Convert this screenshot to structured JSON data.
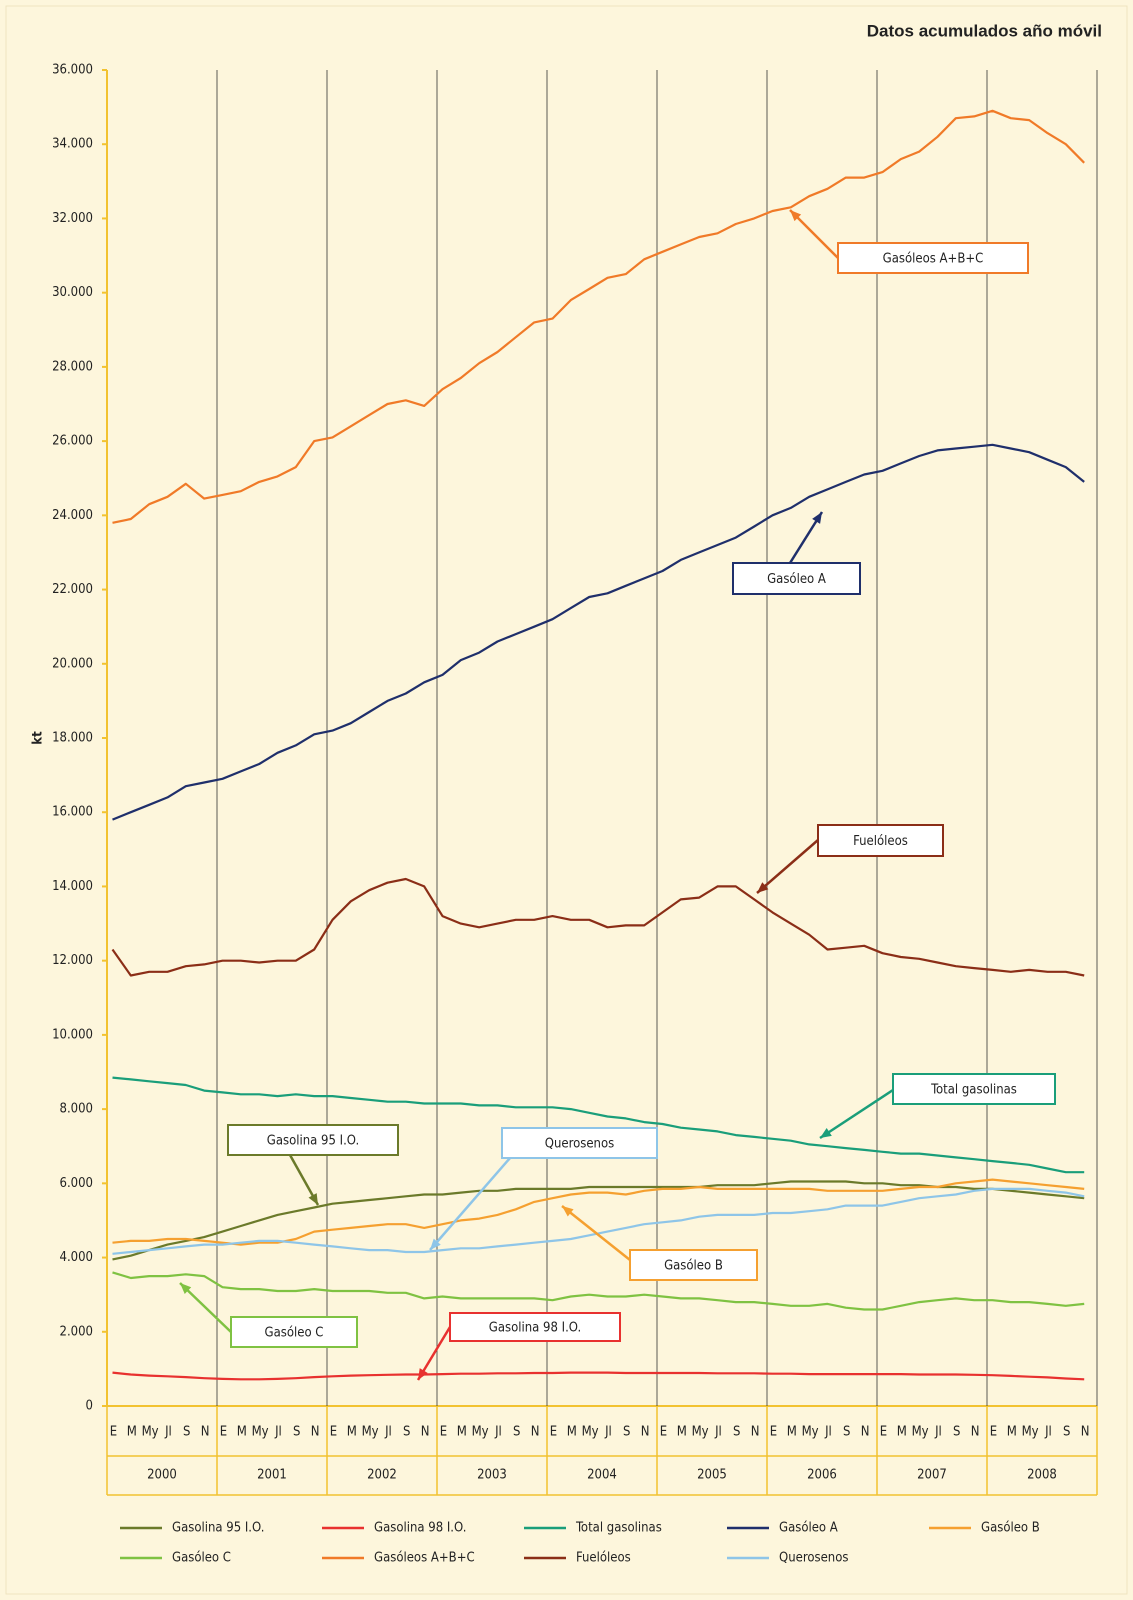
{
  "chart_data": {
    "type": "line",
    "title": "Datos acumulados año móvil",
    "y_label": "kt",
    "categories": [
      "E",
      "M",
      "My",
      "Jl",
      "S",
      "N",
      "E",
      "M",
      "My",
      "Jl",
      "S",
      "N",
      "E",
      "M",
      "My",
      "Jl",
      "S",
      "N",
      "E",
      "M",
      "My",
      "Jl",
      "S",
      "N",
      "E",
      "M",
      "My",
      "Jl",
      "S",
      "N",
      "E",
      "M",
      "My",
      "Jl",
      "S",
      "N",
      "E",
      "M",
      "My",
      "Jl",
      "S",
      "N",
      "E",
      "M",
      "My",
      "Jl",
      "S",
      "N",
      "E",
      "M",
      "My",
      "Jl",
      "S",
      "N"
    ],
    "years": [
      "2000",
      "2001",
      "2002",
      "2003",
      "2004",
      "2005",
      "2006",
      "2007",
      "2008"
    ],
    "ylim": [
      0,
      36000
    ],
    "yticks": [
      0,
      {
        "value": 2000,
        "label": "2.000"
      },
      {
        "value": 4000,
        "label": "4.000"
      },
      {
        "value": 6000,
        "label": "6.000"
      },
      {
        "value": 8000,
        "label": "8.000"
      },
      {
        "value": 10000,
        "label": "10.000"
      },
      {
        "value": 12000,
        "label": "12.000"
      },
      {
        "value": 14000,
        "label": "14.000"
      },
      {
        "value": 16000,
        "label": "16.000"
      },
      {
        "value": 18000,
        "label": "18.000"
      },
      {
        "value": 20000,
        "label": "20.000"
      },
      {
        "value": 22000,
        "label": "22.000"
      },
      {
        "value": 24000,
        "label": "24.000"
      },
      {
        "value": 26000,
        "label": "26.000"
      },
      {
        "value": 28000,
        "label": "28.000"
      },
      {
        "value": 30000,
        "label": "30.000"
      },
      {
        "value": 32000,
        "label": "32.000"
      },
      {
        "value": 34000,
        "label": "34.000"
      },
      {
        "value": 36000,
        "label": "36.000"
      }
    ],
    "grid": "x",
    "series": [
      {
        "name": "Gasolina 95 I.O.",
        "color": "#6b7a2a",
        "values": [
          3950,
          4050,
          4200,
          4350,
          4450,
          4550,
          4700,
          4850,
          5000,
          5150,
          5250,
          5350,
          5450,
          5500,
          5550,
          5600,
          5650,
          5700,
          5700,
          5750,
          5800,
          5800,
          5850,
          5850,
          5850,
          5850,
          5900,
          5900,
          5900,
          5900,
          5900,
          5900,
          5900,
          5950,
          5950,
          5950,
          6000,
          6050,
          6050,
          6050,
          6050,
          6000,
          6000,
          5950,
          5950,
          5900,
          5900,
          5850,
          5850,
          5800,
          5750,
          5700,
          5650,
          5600
        ]
      },
      {
        "name": "Gasolina 98 I.O.",
        "color": "#e8312f",
        "values": [
          900,
          850,
          820,
          800,
          780,
          750,
          730,
          720,
          720,
          730,
          750,
          780,
          800,
          820,
          830,
          840,
          850,
          850,
          860,
          870,
          870,
          880,
          880,
          890,
          890,
          900,
          900,
          900,
          890,
          890,
          890,
          890,
          890,
          880,
          880,
          880,
          870,
          870,
          860,
          860,
          860,
          860,
          860,
          860,
          850,
          850,
          850,
          840,
          830,
          810,
          790,
          770,
          740,
          720
        ]
      },
      {
        "name": "Total gasolinas",
        "color": "#1a9e7a",
        "values": [
          8850,
          8800,
          8750,
          8700,
          8650,
          8500,
          8450,
          8400,
          8400,
          8350,
          8400,
          8350,
          8350,
          8300,
          8250,
          8200,
          8200,
          8150,
          8150,
          8150,
          8100,
          8100,
          8050,
          8050,
          8050,
          8000,
          7900,
          7800,
          7750,
          7650,
          7600,
          7500,
          7450,
          7400,
          7300,
          7250,
          7200,
          7150,
          7050,
          7000,
          6950,
          6900,
          6850,
          6800,
          6800,
          6750,
          6700,
          6650,
          6600,
          6550,
          6500,
          6400,
          6300,
          6300
        ]
      },
      {
        "name": "Gasóleo A",
        "color": "#1f2f6b",
        "values": [
          15800,
          16000,
          16200,
          16400,
          16700,
          16800,
          16900,
          17100,
          17300,
          17600,
          17800,
          18100,
          18200,
          18400,
          18700,
          19000,
          19200,
          19500,
          19700,
          20100,
          20300,
          20600,
          20800,
          21000,
          21200,
          21500,
          21800,
          21900,
          22100,
          22300,
          22500,
          22800,
          23000,
          23200,
          23400,
          23700,
          24000,
          24200,
          24500,
          24700,
          24900,
          25100,
          25200,
          25400,
          25600,
          25750,
          25800,
          25850,
          25900,
          25800,
          25700,
          25500,
          25300,
          24900
        ]
      },
      {
        "name": "Gasóleo B",
        "color": "#f5a030",
        "values": [
          4400,
          4450,
          4450,
          4500,
          4500,
          4450,
          4400,
          4350,
          4400,
          4400,
          4500,
          4700,
          4750,
          4800,
          4850,
          4900,
          4900,
          4800,
          4900,
          5000,
          5050,
          5150,
          5300,
          5500,
          5600,
          5700,
          5750,
          5750,
          5700,
          5800,
          5850,
          5850,
          5900,
          5850,
          5850,
          5850,
          5850,
          5850,
          5850,
          5800,
          5800,
          5800,
          5800,
          5850,
          5900,
          5900,
          6000,
          6050,
          6100,
          6050,
          6000,
          5950,
          5900,
          5850
        ]
      },
      {
        "name": "Gasóleo C",
        "color": "#7fc242",
        "values": [
          3600,
          3450,
          3500,
          3500,
          3550,
          3500,
          3200,
          3150,
          3150,
          3100,
          3100,
          3150,
          3100,
          3100,
          3100,
          3050,
          3050,
          2900,
          2950,
          2900,
          2900,
          2900,
          2900,
          2900,
          2850,
          2950,
          3000,
          2950,
          2950,
          3000,
          2950,
          2900,
          2900,
          2850,
          2800,
          2800,
          2750,
          2700,
          2700,
          2750,
          2650,
          2600,
          2600,
          2700,
          2800,
          2850,
          2900,
          2850,
          2850,
          2800,
          2800,
          2750,
          2700,
          2750
        ]
      },
      {
        "name": "Gasóleos A+B+C",
        "color": "#f07a28",
        "values": [
          23800,
          23900,
          24300,
          24500,
          24850,
          24450,
          24550,
          24650,
          24900,
          25050,
          25300,
          26000,
          26100,
          26400,
          26700,
          27000,
          27100,
          26950,
          27400,
          27700,
          28100,
          28400,
          28800,
          29200,
          29300,
          29800,
          30100,
          30400,
          30500,
          30900,
          31100,
          31300,
          31500,
          31600,
          31850,
          32000,
          32200,
          32300,
          32600,
          32800,
          33100,
          33100,
          33250,
          33600,
          33800,
          34200,
          34700,
          34750,
          34900,
          34700,
          34650,
          34300,
          34000,
          33500
        ]
      },
      {
        "name": "Fuelóleos",
        "color": "#8b2e17",
        "values": [
          12300,
          11600,
          11700,
          11700,
          11850,
          11900,
          12000,
          12000,
          11950,
          12000,
          12000,
          12300,
          13100,
          13600,
          13900,
          14100,
          14200,
          14000,
          13200,
          13000,
          12900,
          13000,
          13100,
          13100,
          13200,
          13100,
          13100,
          12900,
          12950,
          12950,
          13300,
          13650,
          13700,
          14000,
          14000,
          13650,
          13300,
          13000,
          12700,
          12300,
          12350,
          12400,
          12200,
          12100,
          12050,
          11950,
          11850,
          11800,
          11750,
          11700,
          11750,
          11700,
          11700,
          11600
        ]
      },
      {
        "name": "Querosenos",
        "color": "#8ec5e8",
        "values": [
          4100,
          4150,
          4200,
          4250,
          4300,
          4350,
          4350,
          4400,
          4450,
          4450,
          4400,
          4350,
          4300,
          4250,
          4200,
          4200,
          4150,
          4150,
          4200,
          4250,
          4250,
          4300,
          4350,
          4400,
          4450,
          4500,
          4600,
          4700,
          4800,
          4900,
          4950,
          5000,
          5100,
          5150,
          5150,
          5150,
          5200,
          5200,
          5250,
          5300,
          5400,
          5400,
          5400,
          5500,
          5600,
          5650,
          5700,
          5800,
          5850,
          5850,
          5850,
          5800,
          5750,
          5650
        ]
      }
    ],
    "annotations": [
      {
        "text": "Gasóleos A+B+C"
      },
      {
        "text": "Gasóleo A"
      },
      {
        "text": "Fuelóleos"
      },
      {
        "text": "Total gasolinas"
      },
      {
        "text": "Gasolina 95 I.O."
      },
      {
        "text": "Querosenos"
      },
      {
        "text": "Gasóleo B"
      },
      {
        "text": "Gasóleo C"
      },
      {
        "text": "Gasolina 98 I.O."
      }
    ]
  }
}
